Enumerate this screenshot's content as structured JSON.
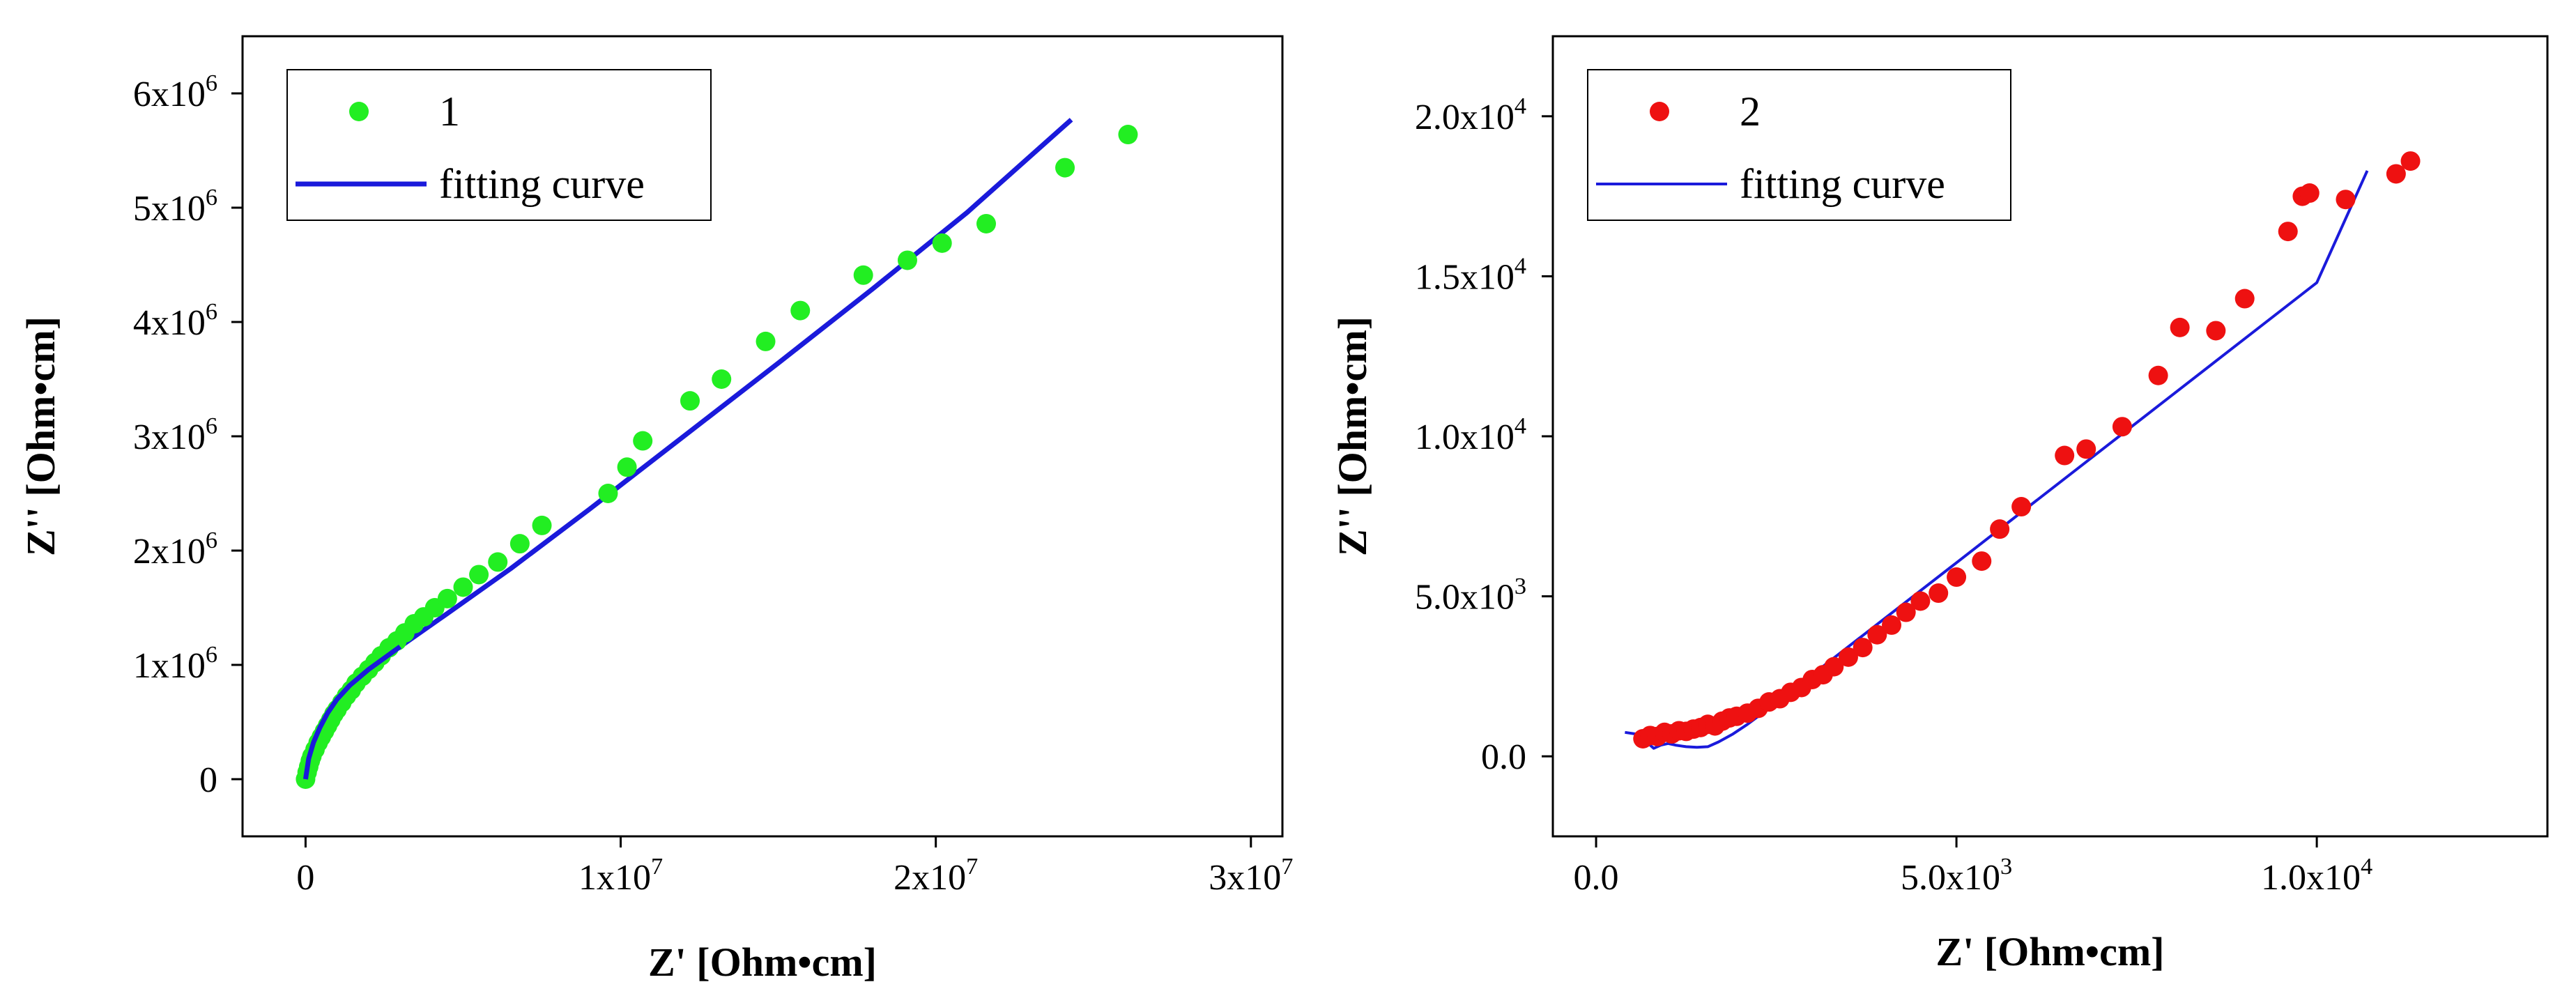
{
  "chart_data": [
    {
      "type": "scatter",
      "title": "",
      "xlabel": "Z' [Ohm•cm]",
      "ylabel": "Z'' [Ohm•cm]",
      "xlim": [
        -2000000,
        31000000
      ],
      "ylim": [
        -500000,
        6500000
      ],
      "xticks": [
        {
          "value": 0,
          "label": "0",
          "exp": ""
        },
        {
          "value": 10000000,
          "label": "1x10",
          "exp": "7"
        },
        {
          "value": 20000000,
          "label": "2x10",
          "exp": "7"
        },
        {
          "value": 30000000,
          "label": "3x10",
          "exp": "7"
        }
      ],
      "yticks": [
        {
          "value": 0,
          "label": "0",
          "exp": ""
        },
        {
          "value": 1000000,
          "label": "1x10",
          "exp": "6"
        },
        {
          "value": 2000000,
          "label": "2x10",
          "exp": "6"
        },
        {
          "value": 3000000,
          "label": "3x10",
          "exp": "6"
        },
        {
          "value": 4000000,
          "label": "4x10",
          "exp": "6"
        },
        {
          "value": 5000000,
          "label": "5x10",
          "exp": "6"
        },
        {
          "value": 6000000,
          "label": "6x10",
          "exp": "6"
        }
      ],
      "legend": {
        "position": "top-left",
        "entries": [
          "1",
          "fitting curve"
        ]
      },
      "series": [
        {
          "name": "1",
          "kind": "points",
          "color": "#22ee22",
          "x": [
            0,
            50000,
            100000,
            150000,
            200000,
            300000,
            400000,
            500000,
            600000,
            700000,
            800000,
            900000,
            1000000,
            1150000,
            1300000,
            1450000,
            1600000,
            1800000,
            2000000,
            2200000,
            2400000,
            2650000,
            2900000,
            3150000,
            3450000,
            3750000,
            4100000,
            4500000,
            5000000,
            5500000,
            6100000,
            6800000,
            7500000,
            9600000,
            10200000,
            10700000,
            12200000,
            13200000,
            14600000,
            15700000,
            17700000,
            19100000,
            20200000,
            21600000,
            24100000,
            26100000
          ],
          "y": [
            0,
            60000,
            110000,
            160000,
            200000,
            260000,
            320000,
            370000,
            420000,
            470000,
            520000,
            570000,
            610000,
            670000,
            730000,
            780000,
            840000,
            900000,
            960000,
            1020000,
            1080000,
            1150000,
            1210000,
            1280000,
            1360000,
            1420000,
            1500000,
            1580000,
            1680000,
            1790000,
            1900000,
            2060000,
            2220000,
            2500000,
            2730000,
            2960000,
            3310000,
            3500000,
            3830000,
            4100000,
            4410000,
            4540000,
            4690000,
            4860000,
            5350000,
            5640000
          ]
        },
        {
          "name": "fitting curve",
          "kind": "line",
          "color": "#1a1adb",
          "x": [
            0,
            100000,
            250000,
            450000,
            700000,
            1000000,
            1400000,
            2000000,
            3000000,
            4500000,
            6500000,
            9000000,
            12000000,
            15000000,
            18000000,
            21000000,
            24300000
          ],
          "y": [
            0,
            180000,
            320000,
            450000,
            580000,
            700000,
            820000,
            960000,
            1160000,
            1450000,
            1840000,
            2360000,
            3000000,
            3640000,
            4290000,
            4960000,
            5770000
          ]
        }
      ]
    },
    {
      "type": "scatter",
      "title": "",
      "xlabel": "Z' [Ohm•cm]",
      "ylabel": "Z'' [Ohm•cm]",
      "xlim": [
        -600,
        13200
      ],
      "ylim": [
        -2500,
        22500
      ],
      "xticks": [
        {
          "value": 0,
          "label": "0.0",
          "exp": ""
        },
        {
          "value": 5000,
          "label": "5.0x10",
          "exp": "3"
        },
        {
          "value": 10000,
          "label": "1.0x10",
          "exp": "4"
        }
      ],
      "yticks": [
        {
          "value": 0,
          "label": "0.0",
          "exp": ""
        },
        {
          "value": 5000,
          "label": "5.0x10",
          "exp": "3"
        },
        {
          "value": 10000,
          "label": "1.0x10",
          "exp": "4"
        },
        {
          "value": 15000,
          "label": "1.5x10",
          "exp": "4"
        },
        {
          "value": 20000,
          "label": "2.0x10",
          "exp": "4"
        }
      ],
      "legend": {
        "position": "top-left",
        "entries": [
          "2",
          "fitting curve"
        ]
      },
      "series": [
        {
          "name": "2",
          "kind": "points",
          "color": "#ee1111",
          "x": [
            650,
            750,
            850,
            950,
            1050,
            1150,
            1250,
            1350,
            1450,
            1550,
            1650,
            1750,
            1850,
            1950,
            2100,
            2250,
            2400,
            2550,
            2700,
            2850,
            3000,
            3150,
            3300,
            3500,
            3700,
            3900,
            4100,
            4300,
            4500,
            4750,
            5000,
            5350,
            5600,
            5900,
            6500,
            6800,
            7300,
            7800,
            8100,
            8600,
            9000,
            9600,
            9800,
            9900,
            10400,
            11100,
            11300
          ],
          "y": [
            550,
            650,
            620,
            750,
            700,
            800,
            780,
            850,
            900,
            1000,
            950,
            1100,
            1200,
            1250,
            1350,
            1500,
            1700,
            1800,
            2000,
            2150,
            2400,
            2550,
            2800,
            3100,
            3400,
            3800,
            4100,
            4500,
            4850,
            5100,
            5600,
            6100,
            7100,
            7800,
            9400,
            9600,
            10300,
            11900,
            13400,
            13300,
            14300,
            16400,
            17500,
            17600,
            17400,
            18200,
            18600
          ]
        },
        {
          "name": "fitting curve",
          "kind": "line",
          "color": "#1a1adb",
          "x": [
            400,
            550,
            700,
            800,
            900,
            1000,
            1100,
            1250,
            1400,
            1550,
            1700,
            1900,
            2100,
            2400,
            3000,
            4000,
            5000,
            6000,
            7000,
            8000,
            9000,
            10000,
            10700
          ],
          "y": [
            750,
            700,
            450,
            250,
            350,
            400,
            350,
            300,
            280,
            300,
            450,
            700,
            1000,
            1500,
            2550,
            4300,
            6050,
            7800,
            9550,
            11300,
            13050,
            14800,
            18300
          ]
        }
      ]
    }
  ]
}
